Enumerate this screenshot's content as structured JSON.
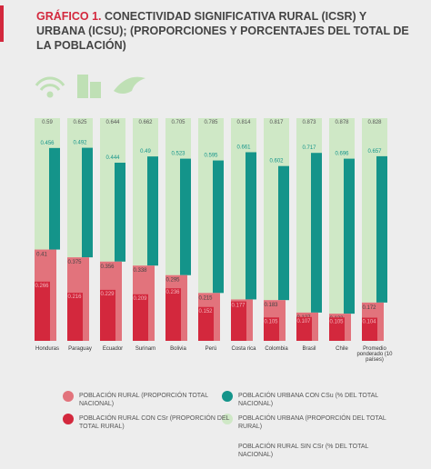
{
  "chart_data": {
    "type": "diverging-bar",
    "title_label": "GRÁFICO 1.",
    "title": "CONECTIVIDAD SIGNIFICATIVA RURAL (ICSR) Y URBANA (ICSU); (PROPORCIONES Y PORCENTAJES DEL TOTAL DE LA POBLACIÓN)",
    "categories": [
      "Honduras",
      "Paraguay",
      "Ecuador",
      "Surinam",
      "Bolivia",
      "Perú",
      "Costa rica",
      "Colombia",
      "Brasil",
      "Chile",
      "Promedio ponderado (10 países)"
    ],
    "series": [
      {
        "name": "POBLACIÓN URBANA (PROPORCIÓN DEL TOTAL RURAL)",
        "color": "#cfe8c6",
        "values": [
          0.59,
          0.625,
          0.644,
          0.662,
          0.705,
          0.785,
          0.814,
          0.817,
          0.873,
          0.878,
          0.828
        ]
      },
      {
        "name": "POBLACIÓN URBANA CON CSu (% DEL TOTAL NACIONAL)",
        "color": "#14948a",
        "values": [
          0.456,
          0.492,
          0.444,
          0.49,
          0.523,
          0.595,
          0.661,
          0.602,
          0.717,
          0.696,
          0.657
        ]
      },
      {
        "name": "POBLACIÓN RURAL (PROPORCIÓN TOTAL NACIONAL)",
        "color": "#e2737c",
        "values": [
          0.41,
          0.375,
          0.356,
          0.338,
          0.295,
          0.215,
          0.186,
          0.183,
          0.127,
          0.122,
          0.172
        ]
      },
      {
        "name": "POBLACIÓN RURAL CON CSr (PROPORCIÓN DEL TOTAL RURAL)",
        "color": "#d3283d",
        "values": [
          0.266,
          0.216,
          0.229,
          0.209,
          0.236,
          0.152,
          0.177,
          0.105,
          0.107,
          0.105,
          0.104
        ]
      }
    ],
    "legend_note": "POBLACIÓN RURAL SIN CSr (% DEL TOTAL NACIONAL)"
  }
}
